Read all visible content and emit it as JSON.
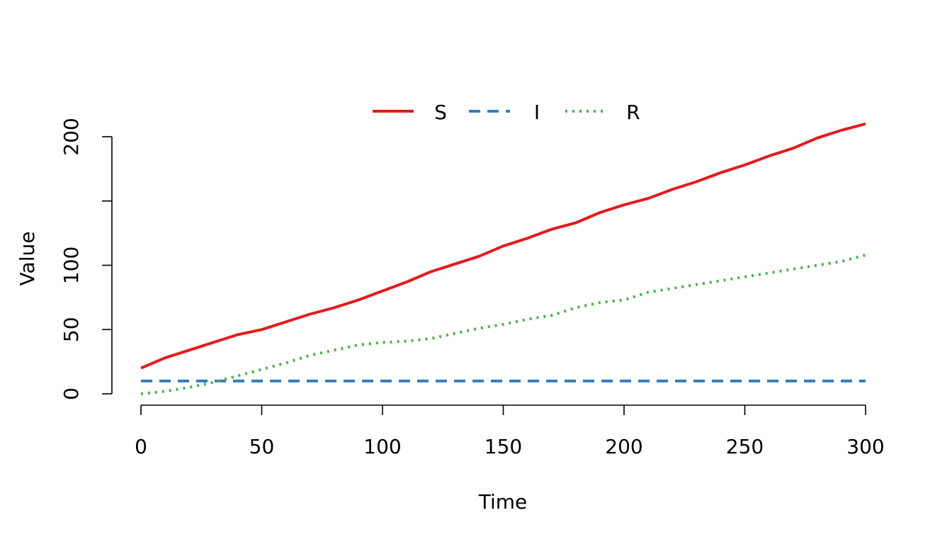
{
  "chart_data": {
    "type": "line",
    "title": "",
    "xlabel": "Time",
    "ylabel": "Value",
    "xlim": [
      0,
      300
    ],
    "ylim": [
      0,
      200
    ],
    "x_ticks": [
      0,
      50,
      100,
      150,
      200,
      250,
      300
    ],
    "y_ticks": [
      0,
      50,
      100,
      150,
      200
    ],
    "y_tick_labels": [
      "0",
      "50",
      "100",
      "",
      "200"
    ],
    "grid": false,
    "legend_position": "top-center",
    "x": [
      0,
      10,
      20,
      30,
      40,
      50,
      60,
      70,
      80,
      90,
      100,
      110,
      120,
      130,
      140,
      150,
      160,
      170,
      180,
      190,
      200,
      210,
      220,
      230,
      240,
      250,
      260,
      270,
      280,
      290,
      300
    ],
    "series": [
      {
        "name": "S",
        "color": "#e41a1c",
        "dash": "solid",
        "values": [
          20,
          28,
          34,
          40,
          46,
          50,
          56,
          62,
          67,
          73,
          80,
          87,
          95,
          101,
          107,
          115,
          121,
          128,
          133,
          141,
          147,
          152,
          159,
          165,
          172,
          178,
          185,
          191,
          199,
          205,
          210
        ]
      },
      {
        "name": "I",
        "color": "#377eb8",
        "dash": "dashed",
        "values": [
          10,
          10,
          10,
          10,
          10,
          10,
          10,
          10,
          10,
          10,
          10,
          10,
          10,
          10,
          10,
          10,
          10,
          10,
          10,
          10,
          10,
          10,
          10,
          10,
          10,
          10,
          10,
          10,
          10,
          10,
          10
        ]
      },
      {
        "name": "R",
        "color": "#4daf4a",
        "dash": "dotted",
        "values": [
          0,
          2,
          5,
          9,
          14,
          19,
          24,
          30,
          34,
          38,
          40,
          41,
          43,
          47,
          51,
          54,
          58,
          61,
          67,
          71,
          73,
          79,
          82,
          85,
          88,
          91,
          94,
          97,
          100,
          103,
          108
        ]
      }
    ]
  }
}
